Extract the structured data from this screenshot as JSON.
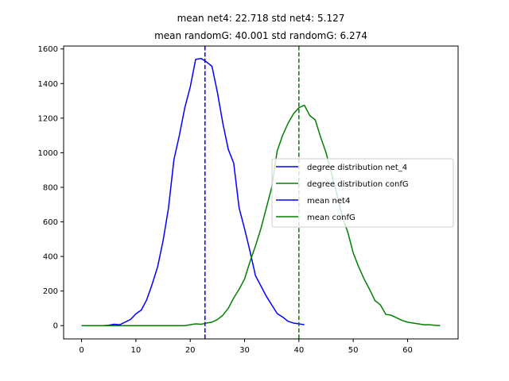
{
  "chart_data": {
    "type": "line",
    "title_line1": "mean net4: 22.718  std net4: 5.127",
    "title_line2": "mean randomG: 40.001  std randomG: 6.274",
    "xlim": [
      -3.3,
      69.3
    ],
    "ylim": [
      -77,
      1617
    ],
    "xticks": [
      0,
      10,
      20,
      30,
      40,
      50,
      60
    ],
    "yticks": [
      0,
      200,
      400,
      600,
      800,
      1000,
      1200,
      1400,
      1600
    ],
    "legend_position": "center-right",
    "legend": [
      "degree distribution net_4",
      "degree distribution confG",
      "mean net4",
      "mean confG"
    ],
    "series": [
      {
        "name": "degree distribution net_4",
        "color": "#0000ff",
        "style": "solid",
        "x": [
          0,
          1,
          2,
          3,
          4,
          5,
          6,
          7,
          8,
          9,
          10,
          11,
          12,
          13,
          14,
          15,
          16,
          17,
          18,
          19,
          20,
          21,
          22,
          23,
          24,
          25,
          26,
          27,
          28,
          29,
          30,
          31,
          32,
          33,
          34,
          35,
          36,
          37,
          38,
          39,
          40,
          41
        ],
        "y": [
          0,
          0,
          0,
          0,
          0,
          2,
          8,
          5,
          20,
          35,
          68,
          90,
          150,
          240,
          340,
          490,
          680,
          960,
          1100,
          1260,
          1380,
          1540,
          1545,
          1525,
          1500,
          1350,
          1170,
          1020,
          940,
          680,
          560,
          430,
          290,
          230,
          170,
          120,
          70,
          50,
          25,
          15,
          10,
          5
        ]
      },
      {
        "name": "degree distribution confG",
        "color": "#008000",
        "style": "solid",
        "x": [
          0,
          1,
          2,
          3,
          4,
          5,
          6,
          7,
          8,
          9,
          10,
          11,
          12,
          13,
          14,
          15,
          16,
          17,
          18,
          19,
          20,
          21,
          22,
          23,
          24,
          25,
          26,
          27,
          28,
          29,
          30,
          31,
          32,
          33,
          34,
          35,
          36,
          37,
          38,
          39,
          40,
          41,
          42,
          43,
          44,
          45,
          46,
          47,
          48,
          49,
          50,
          51,
          52,
          53,
          54,
          55,
          56,
          57,
          58,
          59,
          60,
          61,
          62,
          63,
          64,
          65,
          66
        ],
        "y": [
          0,
          0,
          0,
          0,
          0,
          0,
          0,
          0,
          0,
          0,
          0,
          0,
          0,
          0,
          0,
          0,
          0,
          0,
          0,
          0,
          5,
          10,
          8,
          15,
          20,
          35,
          60,
          100,
          160,
          210,
          270,
          370,
          460,
          560,
          680,
          800,
          1010,
          1100,
          1170,
          1225,
          1260,
          1275,
          1215,
          1190,
          1090,
          1000,
          880,
          760,
          630,
          540,
          420,
          340,
          270,
          210,
          145,
          120,
          65,
          60,
          45,
          30,
          20,
          15,
          10,
          5,
          5,
          2,
          0
        ]
      },
      {
        "name": "mean net4",
        "color": "#0000ff",
        "style": "dashed",
        "x_value": 22.718
      },
      {
        "name": "mean confG",
        "color": "#008000",
        "style": "dashed",
        "x_value": 40.001
      }
    ]
  }
}
